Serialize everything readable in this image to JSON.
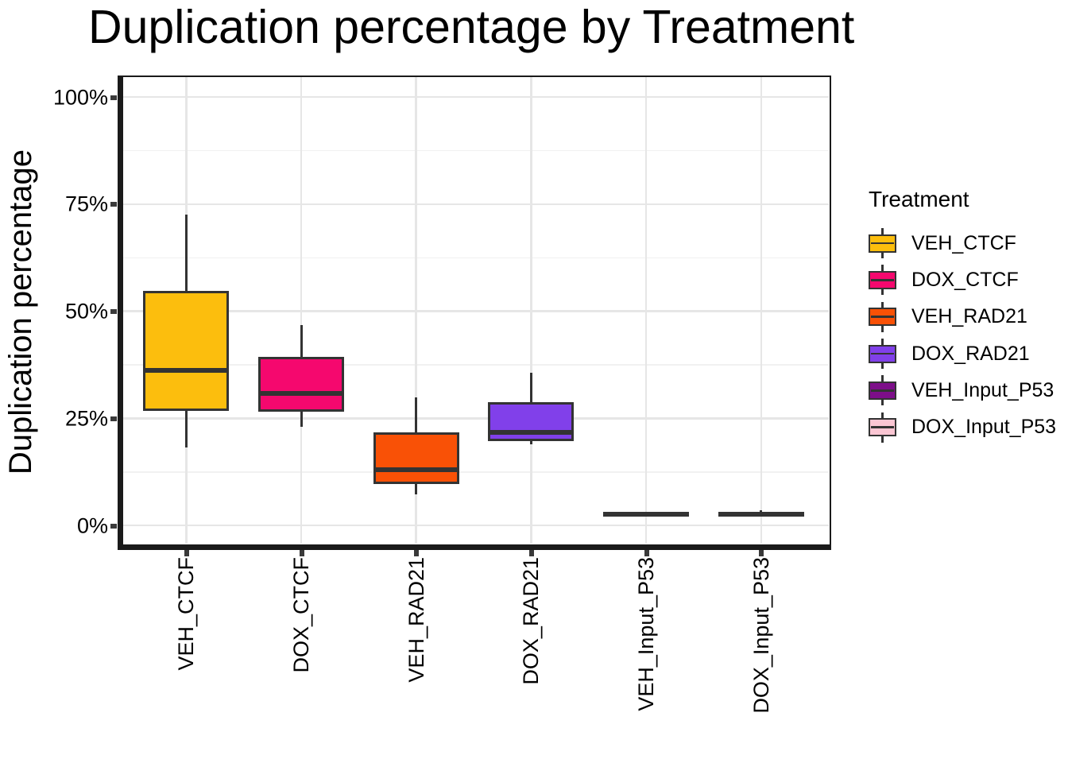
{
  "chart_data": {
    "type": "boxplot",
    "title": "Duplication percentage by Treatment",
    "xlabel": "",
    "ylabel": "Duplication percentage",
    "y_unit": "%",
    "ylim": [
      0,
      100
    ],
    "yticks": [
      0,
      25,
      50,
      75,
      100
    ],
    "ytick_labels": [
      "0%",
      "25%",
      "50%",
      "75%",
      "100%"
    ],
    "yticks_minor": [
      12.5,
      37.5,
      62.5,
      87.5
    ],
    "grid": {
      "major": true,
      "minor": true,
      "color_major": "#e6e6e6",
      "color_minor": "#f1f1f1"
    },
    "categories": [
      "VEH_CTCF",
      "DOX_CTCF",
      "VEH_RAD21",
      "DOX_RAD21",
      "VEH_Input_P53",
      "DOX_Input_P53"
    ],
    "boxes": [
      {
        "label": "VEH_CTCF",
        "fill": "#FCBE0D",
        "min": 18.3,
        "q1": 27.1,
        "median": 36.2,
        "q3": 54.4,
        "max": 72.5
      },
      {
        "label": "DOX_CTCF",
        "fill": "#F5086E",
        "min": 23.1,
        "q1": 26.8,
        "median": 30.8,
        "q3": 39.0,
        "max": 46.8
      },
      {
        "label": "VEH_RAD21",
        "fill": "#F95106",
        "min": 7.2,
        "q1": 9.9,
        "median": 13.0,
        "q3": 21.5,
        "max": 29.9
      },
      {
        "label": "DOX_RAD21",
        "fill": "#8140EA",
        "min": 19.0,
        "q1": 20.0,
        "median": 21.7,
        "q3": 28.5,
        "max": 35.6
      },
      {
        "label": "VEH_Input_P53",
        "fill": "#7D0E89",
        "min": 2.7,
        "q1": 2.8,
        "median": 2.9,
        "q3": 3.0,
        "max": 3.1
      },
      {
        "label": "DOX_Input_P53",
        "fill": "#FBC6D3",
        "min": 2.2,
        "q1": 2.3,
        "median": 2.6,
        "q3": 3.0,
        "max": 3.5
      }
    ],
    "stroke_color": "#333333",
    "legend": {
      "title": "Treatment",
      "position": "right",
      "items": [
        {
          "label": "VEH_CTCF",
          "color": "#FCBE0D"
        },
        {
          "label": "DOX_CTCF",
          "color": "#F5086E"
        },
        {
          "label": "VEH_RAD21",
          "color": "#F95106"
        },
        {
          "label": "DOX_RAD21",
          "color": "#8140EA"
        },
        {
          "label": "VEH_Input_P53",
          "color": "#7D0E89"
        },
        {
          "label": "DOX_Input_P53",
          "color": "#FBC6D3"
        }
      ]
    }
  }
}
